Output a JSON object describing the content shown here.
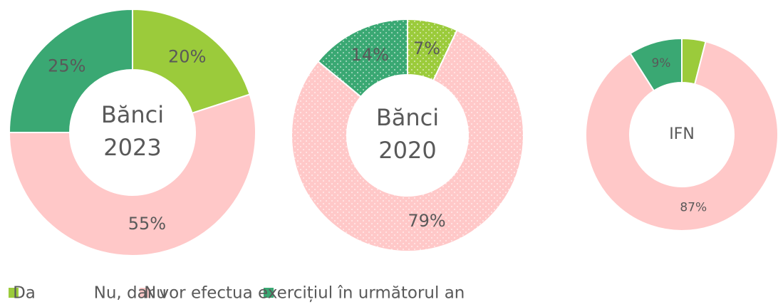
{
  "chart_data": [
    {
      "type": "donut",
      "values": [
        20,
        55,
        25
      ],
      "value_labels": [
        "20%",
        "55%",
        "25%"
      ],
      "center_label": [
        "Bănci",
        "2023"
      ],
      "pattern": "none"
    },
    {
      "type": "donut",
      "values": [
        7,
        79,
        14
      ],
      "value_labels": [
        "7%",
        "79%",
        "14%"
      ],
      "center_label": [
        "Bănci",
        "2020"
      ],
      "pattern": "dots"
    },
    {
      "type": "donut",
      "values": [
        4,
        87,
        9
      ],
      "value_labels": [
        null,
        "87%",
        "9%"
      ],
      "center_label": [
        "IFN"
      ],
      "pattern": "none"
    }
  ],
  "legend": {
    "categories": [
      "Da",
      "Nu",
      "Nu, dar vor efectua exercițiul în următorul an"
    ],
    "colors": [
      "#9bcb3b",
      "#ffc8c8",
      "#3aa873"
    ]
  }
}
